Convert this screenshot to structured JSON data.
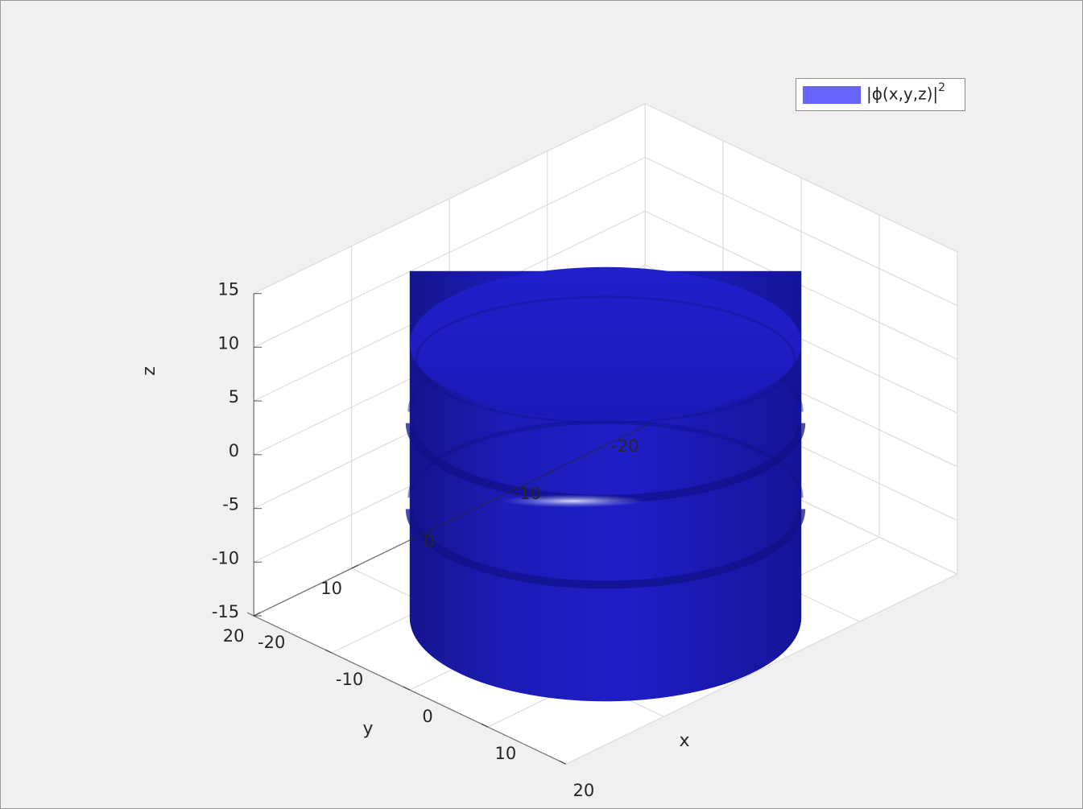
{
  "chart_data": {
    "type": "surface3d",
    "title": "",
    "xlabel": "x",
    "ylabel": "y",
    "zlabel": "z",
    "xlim": [
      -20,
      20
    ],
    "ylim": [
      -20,
      20
    ],
    "zlim": [
      -15,
      15
    ],
    "x_ticks": [
      "-20",
      "-10",
      "0",
      "10",
      "20"
    ],
    "y_ticks": [
      "-20",
      "-10",
      "0",
      "10",
      "20"
    ],
    "z_ticks": [
      "-15",
      "-10",
      "-5",
      "0",
      "5",
      "10",
      "15"
    ],
    "grid": true,
    "legend": {
      "placement": "top-right",
      "entries": [
        "|ϕ(x,y,z)|",
        "2"
      ]
    },
    "series": [
      {
        "name": "|ϕ(x,y,z)|^2",
        "shape": "isosurface cylinder with two grooves",
        "radius": 16,
        "z_range": [
          -15,
          15
        ],
        "groove_z": [
          1,
          -7
        ],
        "color": "#1a1acc"
      }
    ]
  },
  "colors": {
    "surface": "#1a1acc",
    "surface_dark": "#12128a",
    "legend_patch": "#6666ff",
    "background": "#f0f0f0",
    "axes_bg": "#ffffff",
    "grid": "#dedede",
    "axis_line": "#262626"
  }
}
